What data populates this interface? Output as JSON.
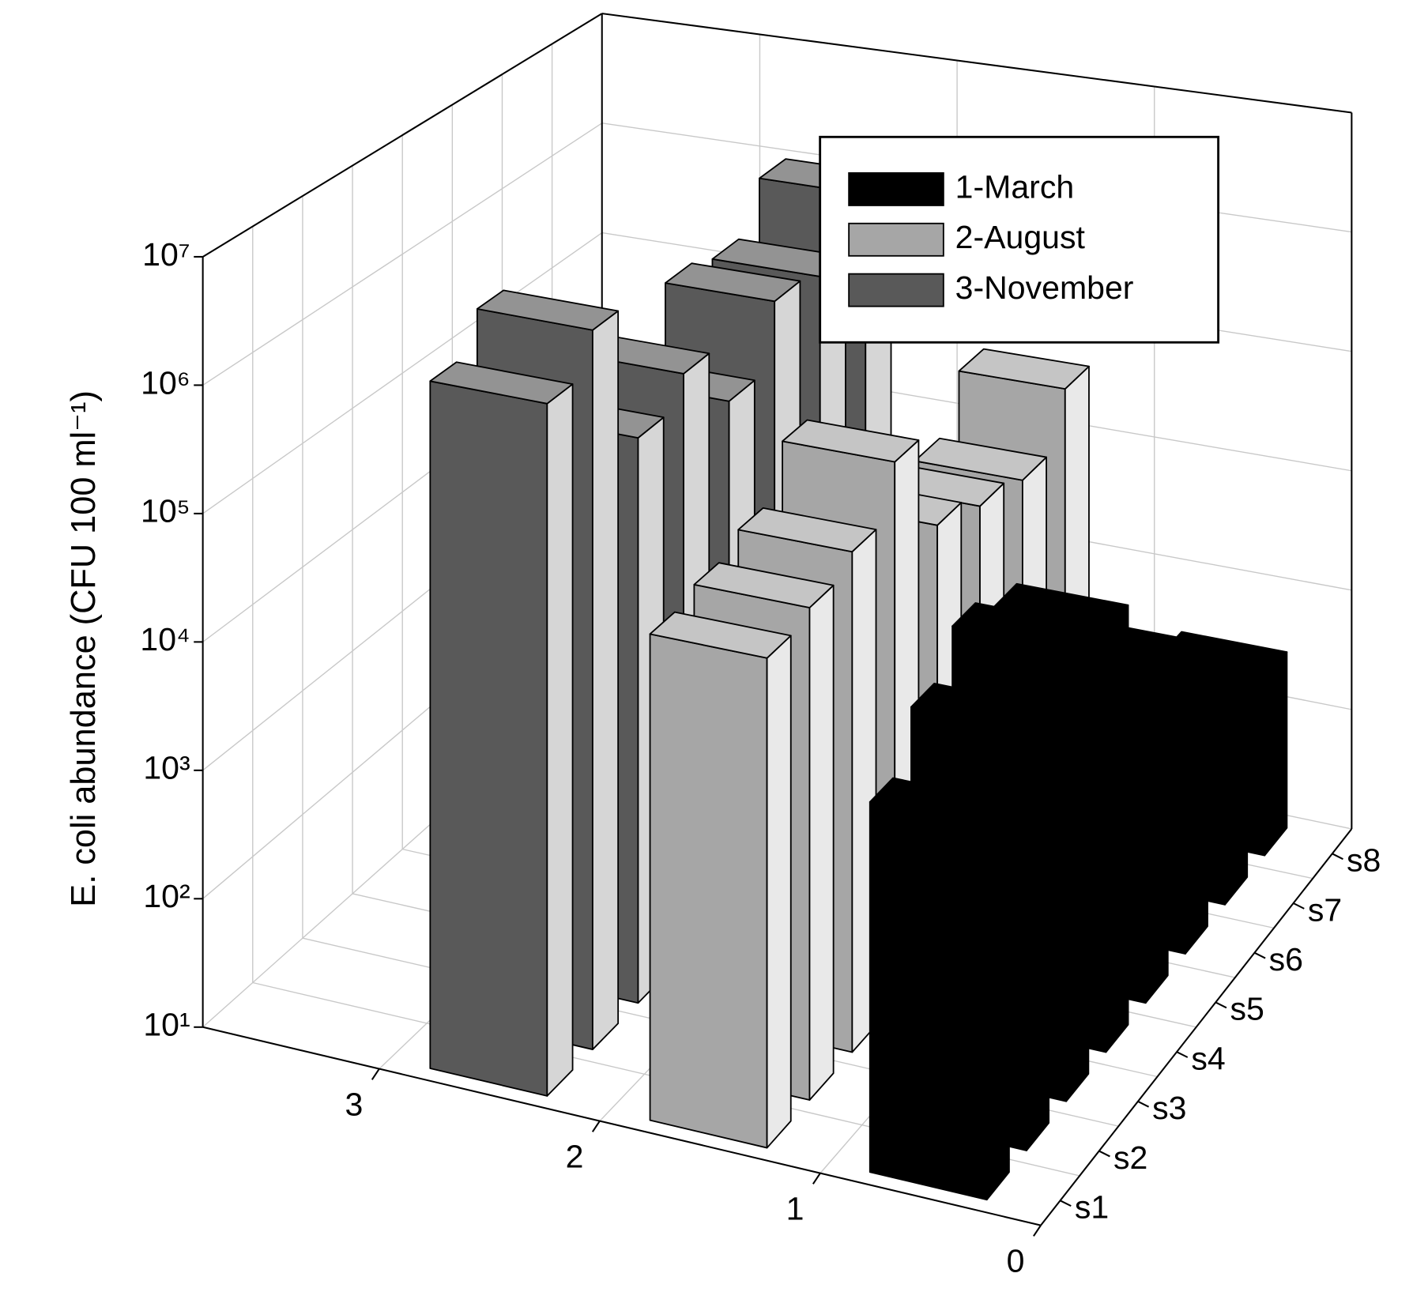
{
  "chart_data": {
    "type": "bar3d",
    "y_label": "E. coli abundance (CFU 100 ml⁻¹)",
    "categories": [
      "s1",
      "s2",
      "s3",
      "s4",
      "s5",
      "s6",
      "s7",
      "s8"
    ],
    "xlim": [
      0,
      3.8
    ],
    "xticks": [
      0,
      1,
      2,
      3
    ],
    "ylim": [
      10,
      10000000
    ],
    "yticks": [
      {
        "value": 10,
        "label": "10¹"
      },
      {
        "value": 100,
        "label": "10²"
      },
      {
        "value": 1000,
        "label": "10³"
      },
      {
        "value": 10000,
        "label": "10⁴"
      },
      {
        "value": 100000,
        "label": "10⁵"
      },
      {
        "value": 1000000,
        "label": "10⁶"
      },
      {
        "value": 10000000,
        "label": "10⁷"
      }
    ],
    "log_scale": true,
    "grid": true,
    "legend": "upper right",
    "series": [
      {
        "name": "1-March",
        "color": "#000000",
        "values": [
          6000,
          15000,
          30000,
          20000,
          3000,
          2000,
          400,
          300
        ]
      },
      {
        "name": "2-August",
        "color": "#a6a6a6",
        "values": [
          50000,
          60000,
          80000,
          200000,
          30000,
          20000,
          15000,
          40000
        ]
      },
      {
        "name": "3-November",
        "color": "#595959",
        "values": [
          2000000,
          4000000,
          300000,
          500000,
          150000,
          500000,
          400000,
          1000000
        ]
      }
    ]
  }
}
